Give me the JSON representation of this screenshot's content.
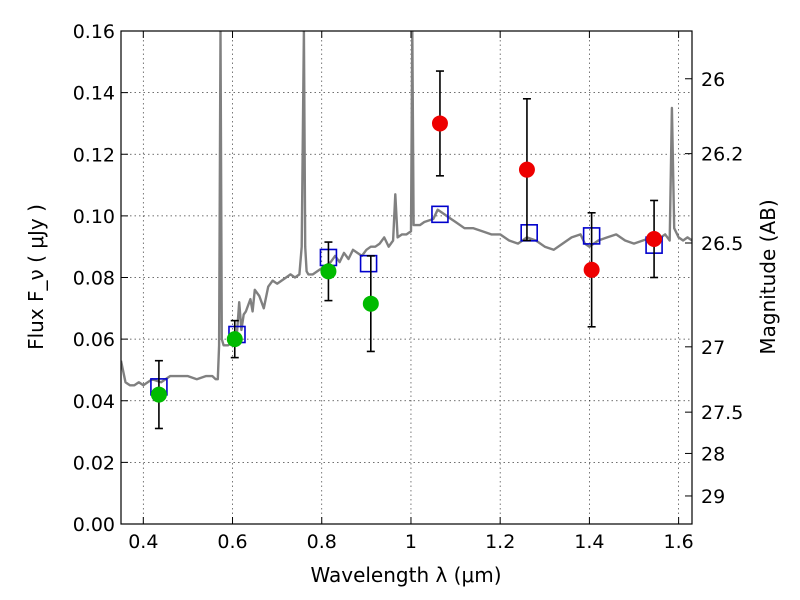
{
  "chart_data": {
    "type": "scatter",
    "xlabel": "Wavelength  λ (μm)",
    "ylabel": "Flux  F_ν  ( μJy )",
    "ylabel_right": "Magnitude (AB)",
    "xlim": [
      0.35,
      1.63
    ],
    "ylim": [
      0,
      0.16
    ],
    "grid": true,
    "x_ticks": [
      0.4,
      0.6,
      0.8,
      1.0,
      1.2,
      1.4,
      1.6
    ],
    "x_tick_labels": [
      "0.4",
      "0.6",
      "0.8",
      "1",
      "1.2",
      "1.4",
      "1.6"
    ],
    "y_ticks": [
      0,
      0.02,
      0.04,
      0.06,
      0.08,
      0.1,
      0.12,
      0.14,
      0.16
    ],
    "y_tick_labels": [
      "0.00",
      "0.02",
      "0.04",
      "0.06",
      "0.08",
      "0.10",
      "0.12",
      "0.14",
      "0.16"
    ],
    "right_ticks": [
      {
        "label": "26",
        "flux": 0.1445
      },
      {
        "label": "26.2",
        "flux": 0.1202
      },
      {
        "label": "26.5",
        "flux": 0.0912
      },
      {
        "label": "27",
        "flux": 0.0575
      },
      {
        "label": "27.5",
        "flux": 0.0363
      },
      {
        "label": "28",
        "flux": 0.0229
      },
      {
        "label": "29",
        "flux": 0.0091
      }
    ],
    "series": [
      {
        "kind": "line",
        "color": "#808080",
        "x": [
          0.35,
          0.36,
          0.37,
          0.38,
          0.39,
          0.4,
          0.42,
          0.44,
          0.46,
          0.48,
          0.5,
          0.52,
          0.54,
          0.555,
          0.562,
          0.567,
          0.57,
          0.573,
          0.576,
          0.58,
          0.59,
          0.6,
          0.61,
          0.615,
          0.62,
          0.625,
          0.63,
          0.64,
          0.645,
          0.65,
          0.66,
          0.67,
          0.68,
          0.69,
          0.7,
          0.71,
          0.72,
          0.73,
          0.74,
          0.75,
          0.755,
          0.76,
          0.763,
          0.766,
          0.77,
          0.78,
          0.79,
          0.8,
          0.81,
          0.82,
          0.83,
          0.84,
          0.85,
          0.86,
          0.87,
          0.88,
          0.89,
          0.9,
          0.91,
          0.92,
          0.93,
          0.94,
          0.95,
          0.96,
          0.965,
          0.97,
          0.98,
          0.99,
          1.0,
          1.003,
          1.006,
          1.01,
          1.02,
          1.03,
          1.05,
          1.06,
          1.07,
          1.08,
          1.09,
          1.1,
          1.12,
          1.14,
          1.16,
          1.18,
          1.2,
          1.22,
          1.24,
          1.26,
          1.28,
          1.3,
          1.32,
          1.34,
          1.36,
          1.38,
          1.39,
          1.4,
          1.42,
          1.44,
          1.46,
          1.48,
          1.5,
          1.52,
          1.54,
          1.55,
          1.56,
          1.57,
          1.58,
          1.585,
          1.59,
          1.6,
          1.61,
          1.62,
          1.63
        ],
        "y": [
          0.053,
          0.046,
          0.045,
          0.045,
          0.046,
          0.045,
          0.047,
          0.046,
          0.048,
          0.048,
          0.048,
          0.047,
          0.048,
          0.048,
          0.047,
          0.047,
          0.058,
          0.16,
          0.06,
          0.058,
          0.058,
          0.059,
          0.062,
          0.072,
          0.063,
          0.068,
          0.069,
          0.073,
          0.069,
          0.076,
          0.074,
          0.07,
          0.077,
          0.079,
          0.078,
          0.079,
          0.08,
          0.081,
          0.08,
          0.081,
          0.09,
          0.16,
          0.09,
          0.082,
          0.081,
          0.081,
          0.082,
          0.083,
          0.084,
          0.085,
          0.087,
          0.085,
          0.088,
          0.086,
          0.089,
          0.088,
          0.087,
          0.089,
          0.09,
          0.09,
          0.091,
          0.093,
          0.09,
          0.092,
          0.107,
          0.093,
          0.094,
          0.094,
          0.095,
          0.16,
          0.097,
          0.097,
          0.097,
          0.098,
          0.099,
          0.102,
          0.101,
          0.1,
          0.099,
          0.098,
          0.096,
          0.096,
          0.095,
          0.094,
          0.094,
          0.092,
          0.091,
          0.093,
          0.092,
          0.09,
          0.089,
          0.091,
          0.093,
          0.094,
          0.091,
          0.09,
          0.092,
          0.093,
          0.094,
          0.092,
          0.091,
          0.092,
          0.093,
          0.094,
          0.093,
          0.094,
          0.092,
          0.135,
          0.096,
          0.093,
          0.092,
          0.093,
          0.092
        ]
      },
      {
        "kind": "markers",
        "marker": "open-square",
        "color": "#0000cc",
        "x": [
          0.435,
          0.61,
          0.815,
          0.905,
          1.065,
          1.265,
          1.405,
          1.545
        ],
        "y": [
          0.0445,
          0.0615,
          0.0865,
          0.0845,
          0.1005,
          0.0945,
          0.0935,
          0.0905
        ]
      },
      {
        "kind": "markers",
        "marker": "circle",
        "color": "#00bb00",
        "x": [
          0.435,
          0.605,
          0.815,
          0.91
        ],
        "y": [
          0.042,
          0.06,
          0.082,
          0.0715
        ],
        "err_low": [
          0.011,
          0.006,
          0.0095,
          0.0155
        ],
        "err_high": [
          0.011,
          0.006,
          0.0095,
          0.0155
        ]
      },
      {
        "kind": "markers",
        "marker": "circle",
        "color": "#ee0000",
        "x": [
          1.065,
          1.26,
          1.405,
          1.545
        ],
        "y": [
          0.13,
          0.115,
          0.0825,
          0.0925
        ],
        "err_low": [
          0.017,
          0.023,
          0.0185,
          0.0125
        ],
        "err_high": [
          0.017,
          0.023,
          0.0185,
          0.0125
        ]
      }
    ]
  }
}
